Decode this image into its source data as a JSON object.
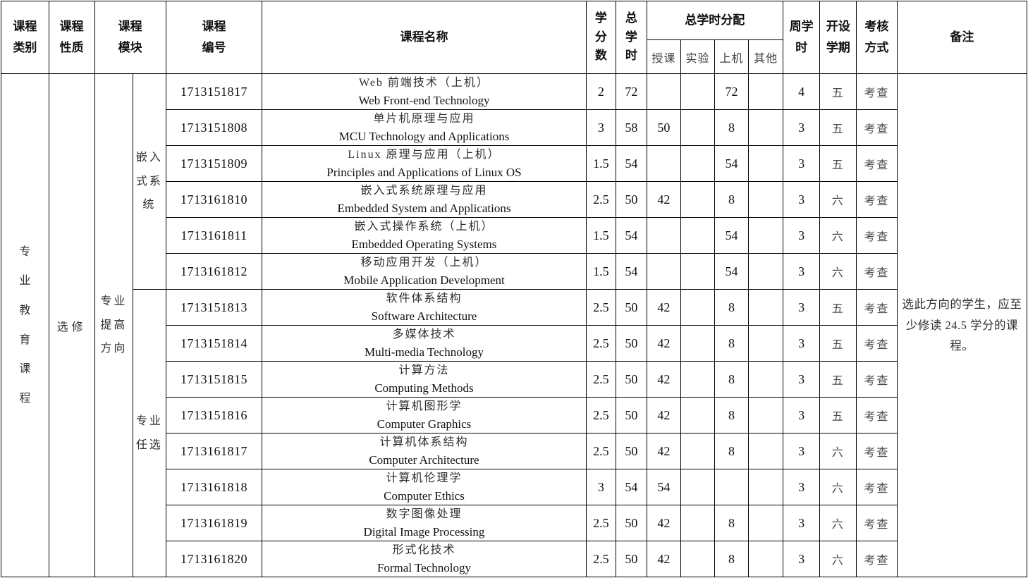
{
  "header": {
    "category": "课程类别",
    "nature": "课程性质",
    "module": "课程模块",
    "course_no": "课程编号",
    "course_name": "课程名称",
    "credits": "学分数",
    "total_hours": "总学时",
    "hours_dist": "总学时分配",
    "sub_lecture": "授课",
    "sub_experiment": "实验",
    "sub_computer": "上机",
    "sub_other": "其他",
    "weekly_hours": "周学时",
    "semester": "开设学期",
    "assessment": "考核方式",
    "remarks": "备注"
  },
  "left": {
    "category": "专业教育课程",
    "nature": "选修",
    "module_main": "专业提高方向",
    "module_embedded": "嵌入式系统",
    "module_elective": "专业任选"
  },
  "remark_text": "选此方向的学生，应至少修读 24.5 学分的课程。",
  "courses": [
    {
      "no": "1713151817",
      "zh": "Web 前端技术（上机）",
      "en": "Web Front-end Technology",
      "credits": "2",
      "total": "72",
      "lecture": "",
      "experiment": "",
      "computer": "72",
      "other": "",
      "weekly": "4",
      "semester": "五",
      "assessment": "考查"
    },
    {
      "no": "1713151808",
      "zh": "单片机原理与应用",
      "en": "MCU Technology and Applications",
      "credits": "3",
      "total": "58",
      "lecture": "50",
      "experiment": "",
      "computer": "8",
      "other": "",
      "weekly": "3",
      "semester": "五",
      "assessment": "考查"
    },
    {
      "no": "1713151809",
      "zh": "Linux 原理与应用（上机）",
      "en": "Principles and Applications of Linux OS",
      "credits": "1.5",
      "total": "54",
      "lecture": "",
      "experiment": "",
      "computer": "54",
      "other": "",
      "weekly": "3",
      "semester": "五",
      "assessment": "考查"
    },
    {
      "no": "1713161810",
      "zh": "嵌入式系统原理与应用",
      "en": "Embedded System and Applications",
      "credits": "2.5",
      "total": "50",
      "lecture": "42",
      "experiment": "",
      "computer": "8",
      "other": "",
      "weekly": "3",
      "semester": "六",
      "assessment": "考查"
    },
    {
      "no": "1713161811",
      "zh": "嵌入式操作系统（上机）",
      "en": "Embedded Operating Systems",
      "credits": "1.5",
      "total": "54",
      "lecture": "",
      "experiment": "",
      "computer": "54",
      "other": "",
      "weekly": "3",
      "semester": "六",
      "assessment": "考查"
    },
    {
      "no": "1713161812",
      "zh": "移动应用开发（上机）",
      "en": "Mobile Application Development",
      "credits": "1.5",
      "total": "54",
      "lecture": "",
      "experiment": "",
      "computer": "54",
      "other": "",
      "weekly": "3",
      "semester": "六",
      "assessment": "考查"
    },
    {
      "no": "1713151813",
      "zh": "软件体系结构",
      "en": "Software Architecture",
      "credits": "2.5",
      "total": "50",
      "lecture": "42",
      "experiment": "",
      "computer": "8",
      "other": "",
      "weekly": "3",
      "semester": "五",
      "assessment": "考查"
    },
    {
      "no": "1713151814",
      "zh": "多媒体技术",
      "en": "Multi-media Technology",
      "credits": "2.5",
      "total": "50",
      "lecture": "42",
      "experiment": "",
      "computer": "8",
      "other": "",
      "weekly": "3",
      "semester": "五",
      "assessment": "考查"
    },
    {
      "no": "1713151815",
      "zh": "计算方法",
      "en": "Computing Methods",
      "credits": "2.5",
      "total": "50",
      "lecture": "42",
      "experiment": "",
      "computer": "8",
      "other": "",
      "weekly": "3",
      "semester": "五",
      "assessment": "考查"
    },
    {
      "no": "1713151816",
      "zh": "计算机图形学",
      "en": "Computer Graphics",
      "credits": "2.5",
      "total": "50",
      "lecture": "42",
      "experiment": "",
      "computer": "8",
      "other": "",
      "weekly": "3",
      "semester": "五",
      "assessment": "考查"
    },
    {
      "no": "1713161817",
      "zh": "计算机体系结构",
      "en": "Computer Architecture",
      "credits": "2.5",
      "total": "50",
      "lecture": "42",
      "experiment": "",
      "computer": "8",
      "other": "",
      "weekly": "3",
      "semester": "六",
      "assessment": "考查"
    },
    {
      "no": "1713161818",
      "zh": "计算机伦理学",
      "en": "Computer Ethics",
      "credits": "3",
      "total": "54",
      "lecture": "54",
      "experiment": "",
      "computer": "",
      "other": "",
      "weekly": "3",
      "semester": "六",
      "assessment": "考查"
    },
    {
      "no": "1713161819",
      "zh": "数字图像处理",
      "en": "Digital Image Processing",
      "credits": "2.5",
      "total": "50",
      "lecture": "42",
      "experiment": "",
      "computer": "8",
      "other": "",
      "weekly": "3",
      "semester": "六",
      "assessment": "考查"
    },
    {
      "no": "1713161820",
      "zh": "形式化技术",
      "en": "Formal Technology",
      "credits": "2.5",
      "total": "50",
      "lecture": "42",
      "experiment": "",
      "computer": "8",
      "other": "",
      "weekly": "3",
      "semester": "六",
      "assessment": "考查"
    }
  ],
  "layout_meta": {
    "embedded_rows": 6,
    "elective_rows": 8
  }
}
